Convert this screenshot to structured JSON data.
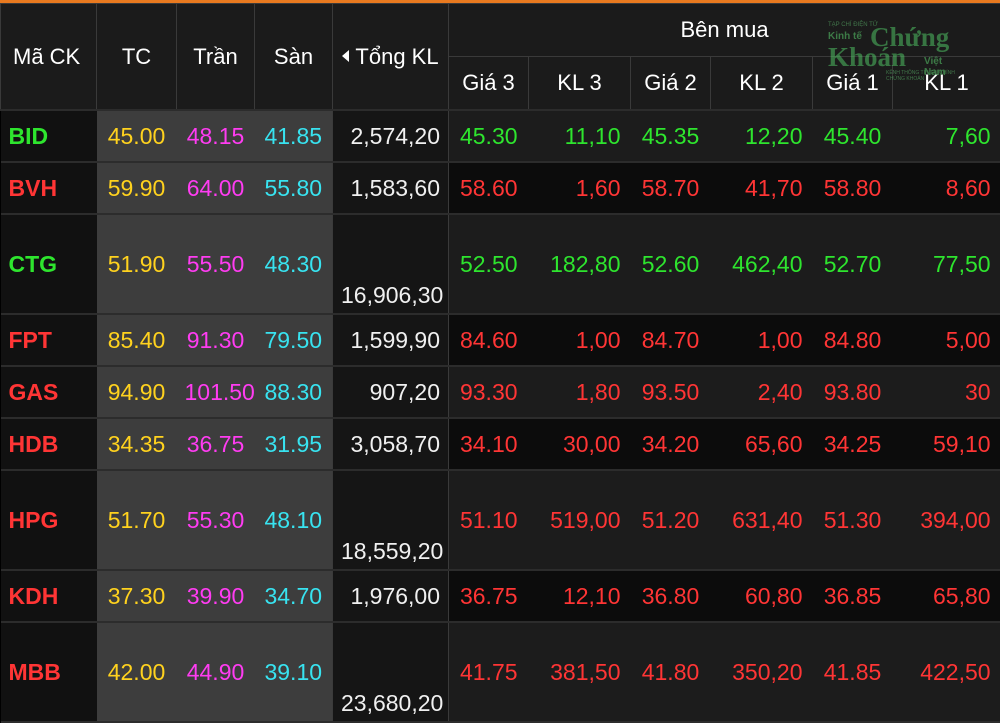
{
  "header": {
    "ma_ck": "Mã CK",
    "tc": "TC",
    "tran": "Trần",
    "san": "Sàn",
    "tong_kl": "Tổng KL",
    "ben_mua": "Bên mua",
    "gia3": "Giá 3",
    "kl3": "KL 3",
    "gia2": "Giá 2",
    "kl2": "KL 2",
    "gia1": "Giá 1",
    "kl1": "KL 1"
  },
  "logo": {
    "small": "TẠP CHÍ ĐIỆN TỬ",
    "kinh_te": "Kinh tế",
    "chung": "Chứng",
    "khoan": "Khoán",
    "viet_nam": "Việt Nam",
    "tag": "KÊNH THÔNG TIN TÀI CHÍNH CHỨNG KHOÁN"
  },
  "colors": {
    "ref": "#ffd21e",
    "ceiling": "#ff3cf2",
    "floor": "#38e3f0",
    "up": "#2ee52e",
    "down": "#ff3535",
    "accent": "#e8791f"
  },
  "rows": [
    {
      "sym": "BID",
      "color": "green",
      "tc": "45.00",
      "tran": "48.15",
      "san": "41.85",
      "tkl": "2,574,20",
      "g3": "45.30",
      "kl3": "11,10",
      "g2": "45.35",
      "kl2": "12,20",
      "g1": "45.40",
      "kl1": "7,60"
    },
    {
      "sym": "BVH",
      "color": "red",
      "tc": "59.90",
      "tran": "64.00",
      "san": "55.80",
      "tkl": "1,583,60",
      "g3": "58.60",
      "kl3": "1,60",
      "g2": "58.70",
      "kl2": "41,70",
      "g1": "58.80",
      "kl1": "8,60"
    },
    {
      "sym": "CTG",
      "color": "green",
      "tc": "51.90",
      "tran": "55.50",
      "san": "48.30",
      "tkl": "16,906,30",
      "g3": "52.50",
      "kl3": "182,80",
      "g2": "52.60",
      "kl2": "462,40",
      "g1": "52.70",
      "kl1": "77,50"
    },
    {
      "sym": "FPT",
      "color": "red",
      "tc": "85.40",
      "tran": "91.30",
      "san": "79.50",
      "tkl": "1,599,90",
      "g3": "84.60",
      "kl3": "1,00",
      "g2": "84.70",
      "kl2": "1,00",
      "g1": "84.80",
      "kl1": "5,00"
    },
    {
      "sym": "GAS",
      "color": "red",
      "tc": "94.90",
      "tran": "101.50",
      "san": "88.30",
      "tkl": "907,20",
      "g3": "93.30",
      "kl3": "1,80",
      "g2": "93.50",
      "kl2": "2,40",
      "g1": "93.80",
      "kl1": "30"
    },
    {
      "sym": "HDB",
      "color": "red",
      "tc": "34.35",
      "tran": "36.75",
      "san": "31.95",
      "tkl": "3,058,70",
      "g3": "34.10",
      "kl3": "30,00",
      "g2": "34.20",
      "kl2": "65,60",
      "g1": "34.25",
      "kl1": "59,10"
    },
    {
      "sym": "HPG",
      "color": "red",
      "tc": "51.70",
      "tran": "55.30",
      "san": "48.10",
      "tkl": "18,559,20",
      "g3": "51.10",
      "kl3": "519,00",
      "g2": "51.20",
      "kl2": "631,40",
      "g1": "51.30",
      "kl1": "394,00"
    },
    {
      "sym": "KDH",
      "color": "red",
      "tc": "37.30",
      "tran": "39.90",
      "san": "34.70",
      "tkl": "1,976,00",
      "g3": "36.75",
      "kl3": "12,10",
      "g2": "36.80",
      "kl2": "60,80",
      "g1": "36.85",
      "kl1": "65,80"
    },
    {
      "sym": "MBB",
      "color": "red",
      "tc": "42.00",
      "tran": "44.90",
      "san": "39.10",
      "tkl": "23,680,20",
      "g3": "41.75",
      "kl3": "381,50",
      "g2": "41.80",
      "kl2": "350,20",
      "g1": "41.85",
      "kl1": "422,50"
    }
  ]
}
